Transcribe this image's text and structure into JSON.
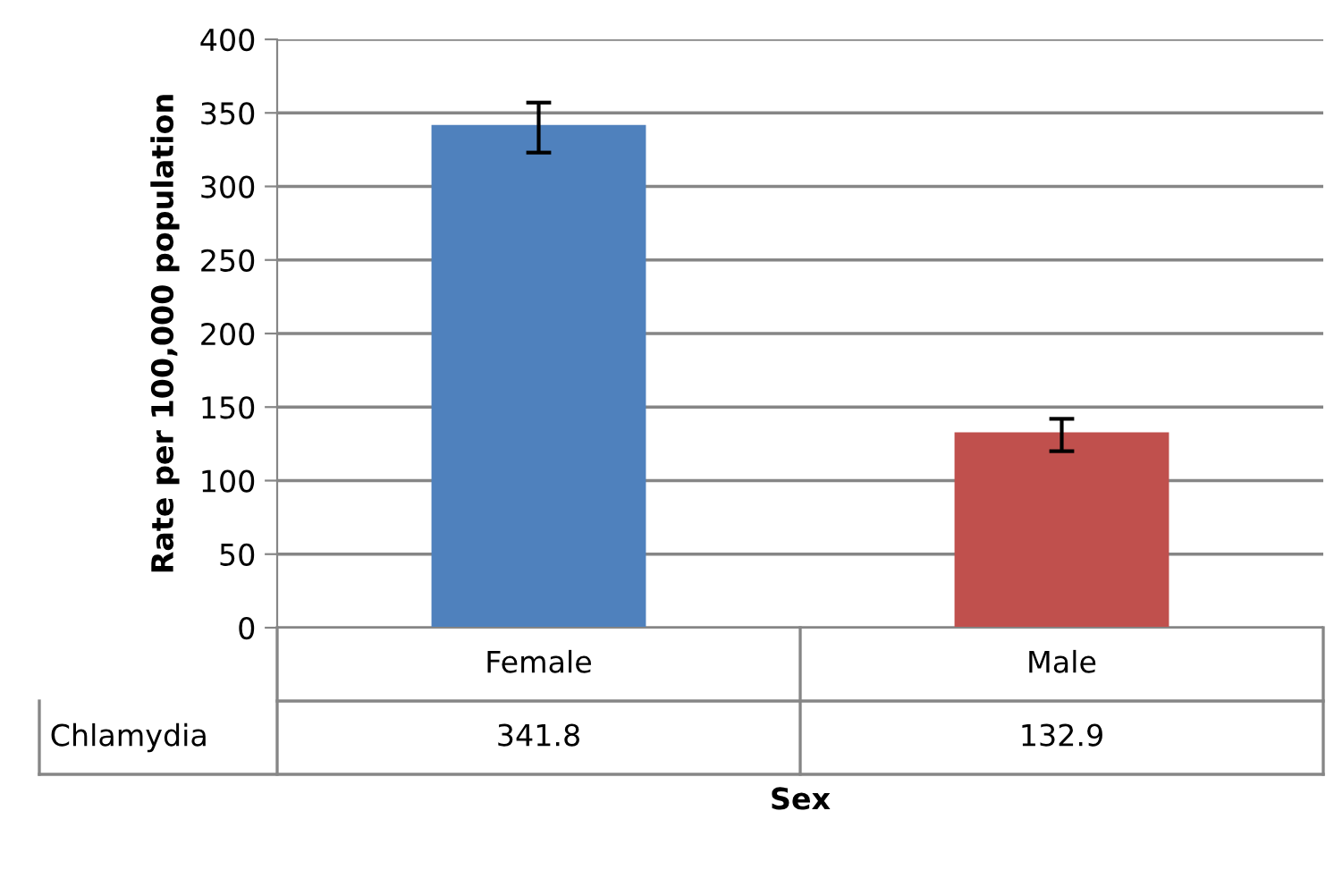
{
  "chart_data": {
    "type": "bar",
    "xlabel": "Sex",
    "ylabel": "Rate per 100,000 population",
    "categories": [
      "Female",
      "Male"
    ],
    "series": [
      {
        "name": "Chlamydia",
        "colors": [
          "#4f81bd",
          "#c0504d"
        ],
        "values": [
          341.8,
          132.9
        ],
        "errors": [
          [
            323,
            357
          ],
          [
            120,
            142
          ]
        ]
      }
    ],
    "ylim": [
      0,
      400
    ],
    "yticks": [
      0,
      50,
      100,
      150,
      200,
      250,
      300,
      350,
      400
    ],
    "grid": "y",
    "data_labels": true
  }
}
